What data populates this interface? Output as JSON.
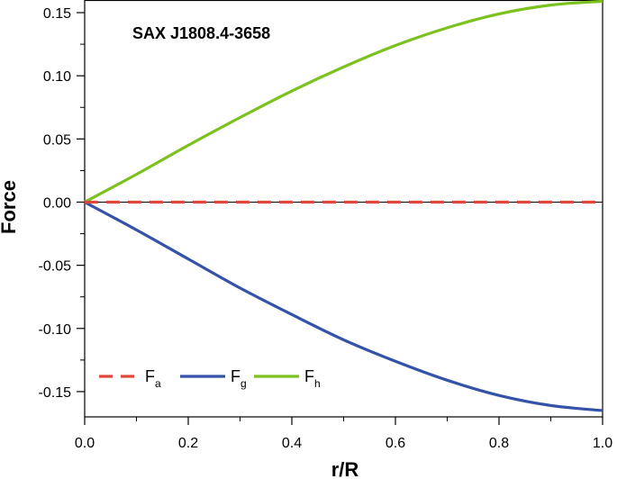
{
  "chart_data": {
    "type": "line",
    "title": "",
    "annotation": "SAX J1808.4-3658",
    "xlabel": "r/R",
    "ylabel": "Force",
    "xlim": [
      0.0,
      1.0
    ],
    "ylim": [
      -0.17,
      0.16
    ],
    "x_ticks": [
      "0.0",
      "0.2",
      "0.4",
      "0.6",
      "0.8",
      "1.0"
    ],
    "y_ticks": [
      "0.15",
      "0.10",
      "0.05",
      "0.00",
      "-0.05",
      "-0.10",
      "-0.15"
    ],
    "grid": false,
    "legend_position": "bottom-left",
    "series": [
      {
        "name": "F",
        "sub": "a",
        "color": "#e0473a",
        "dash": true,
        "x": [
          0.0,
          0.1,
          0.2,
          0.3,
          0.4,
          0.5,
          0.6,
          0.7,
          0.8,
          0.9,
          1.0
        ],
        "y": [
          0.0,
          0.0,
          0.0,
          0.0,
          0.0,
          0.0,
          0.0,
          0.0,
          0.0,
          0.0,
          0.0
        ]
      },
      {
        "name": "F",
        "sub": "g",
        "color": "#3352a8",
        "dash": false,
        "x": [
          0.0,
          0.1,
          0.2,
          0.3,
          0.4,
          0.5,
          0.6,
          0.7,
          0.8,
          0.9,
          1.0
        ],
        "y": [
          0.0,
          -0.022,
          -0.045,
          -0.068,
          -0.089,
          -0.109,
          -0.126,
          -0.141,
          -0.153,
          -0.161,
          -0.165
        ]
      },
      {
        "name": "F",
        "sub": "h",
        "color": "#7cc21e",
        "dash": false,
        "x": [
          0.0,
          0.1,
          0.2,
          0.3,
          0.4,
          0.5,
          0.6,
          0.7,
          0.8,
          0.9,
          1.0
        ],
        "y": [
          0.0,
          0.022,
          0.045,
          0.067,
          0.088,
          0.107,
          0.124,
          0.138,
          0.149,
          0.156,
          0.159
        ]
      }
    ]
  }
}
